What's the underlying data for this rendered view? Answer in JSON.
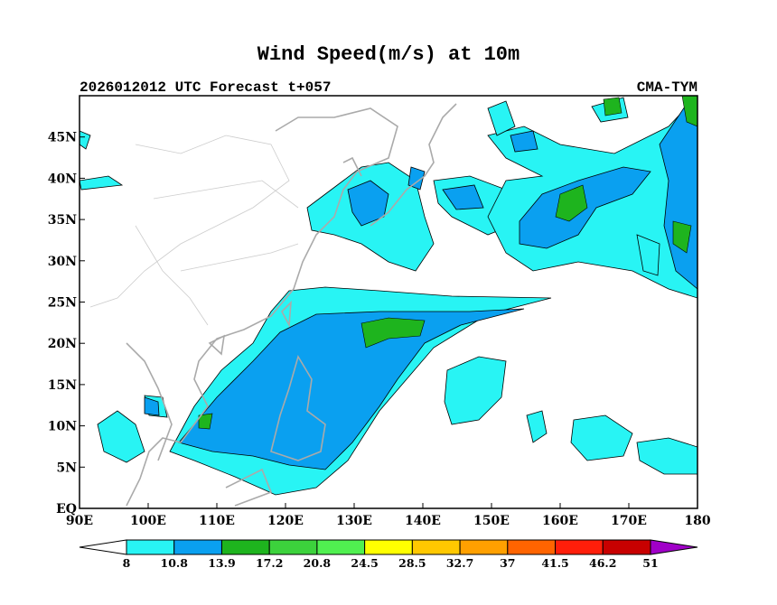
{
  "title": "Wind Speed(m/s) at 10m",
  "subtitle_left": "2026012012 UTC Forecast t+057",
  "subtitle_right": "CMA-TYM",
  "map": {
    "projection": "lat-lon",
    "lon_range": [
      90,
      180
    ],
    "lat_range": [
      0,
      50
    ],
    "x_ticks": [
      "90E",
      "100E",
      "110E",
      "120E",
      "130E",
      "140E",
      "150E",
      "160E",
      "170E",
      "180"
    ],
    "x_tick_values": [
      90,
      100,
      110,
      120,
      130,
      140,
      150,
      160,
      170,
      180
    ],
    "y_ticks": [
      "EQ",
      "5N",
      "10N",
      "15N",
      "20N",
      "25N",
      "30N",
      "35N",
      "40N",
      "45N"
    ],
    "y_tick_values": [
      0,
      5,
      10,
      15,
      20,
      25,
      30,
      35,
      40,
      45
    ]
  },
  "colorbar": {
    "labels": [
      "8",
      "10.8",
      "13.9",
      "17.2",
      "20.8",
      "24.5",
      "28.5",
      "32.7",
      "37",
      "41.5",
      "46.2",
      "51"
    ],
    "colors": [
      "#ffffff",
      "#28f4f4",
      "#0aa0f0",
      "#1eb41e",
      "#3cd23c",
      "#50f050",
      "#ffff00",
      "#ffc800",
      "#ffa000",
      "#ff6400",
      "#ff1e0a",
      "#c80000",
      "#a000c8"
    ]
  }
}
